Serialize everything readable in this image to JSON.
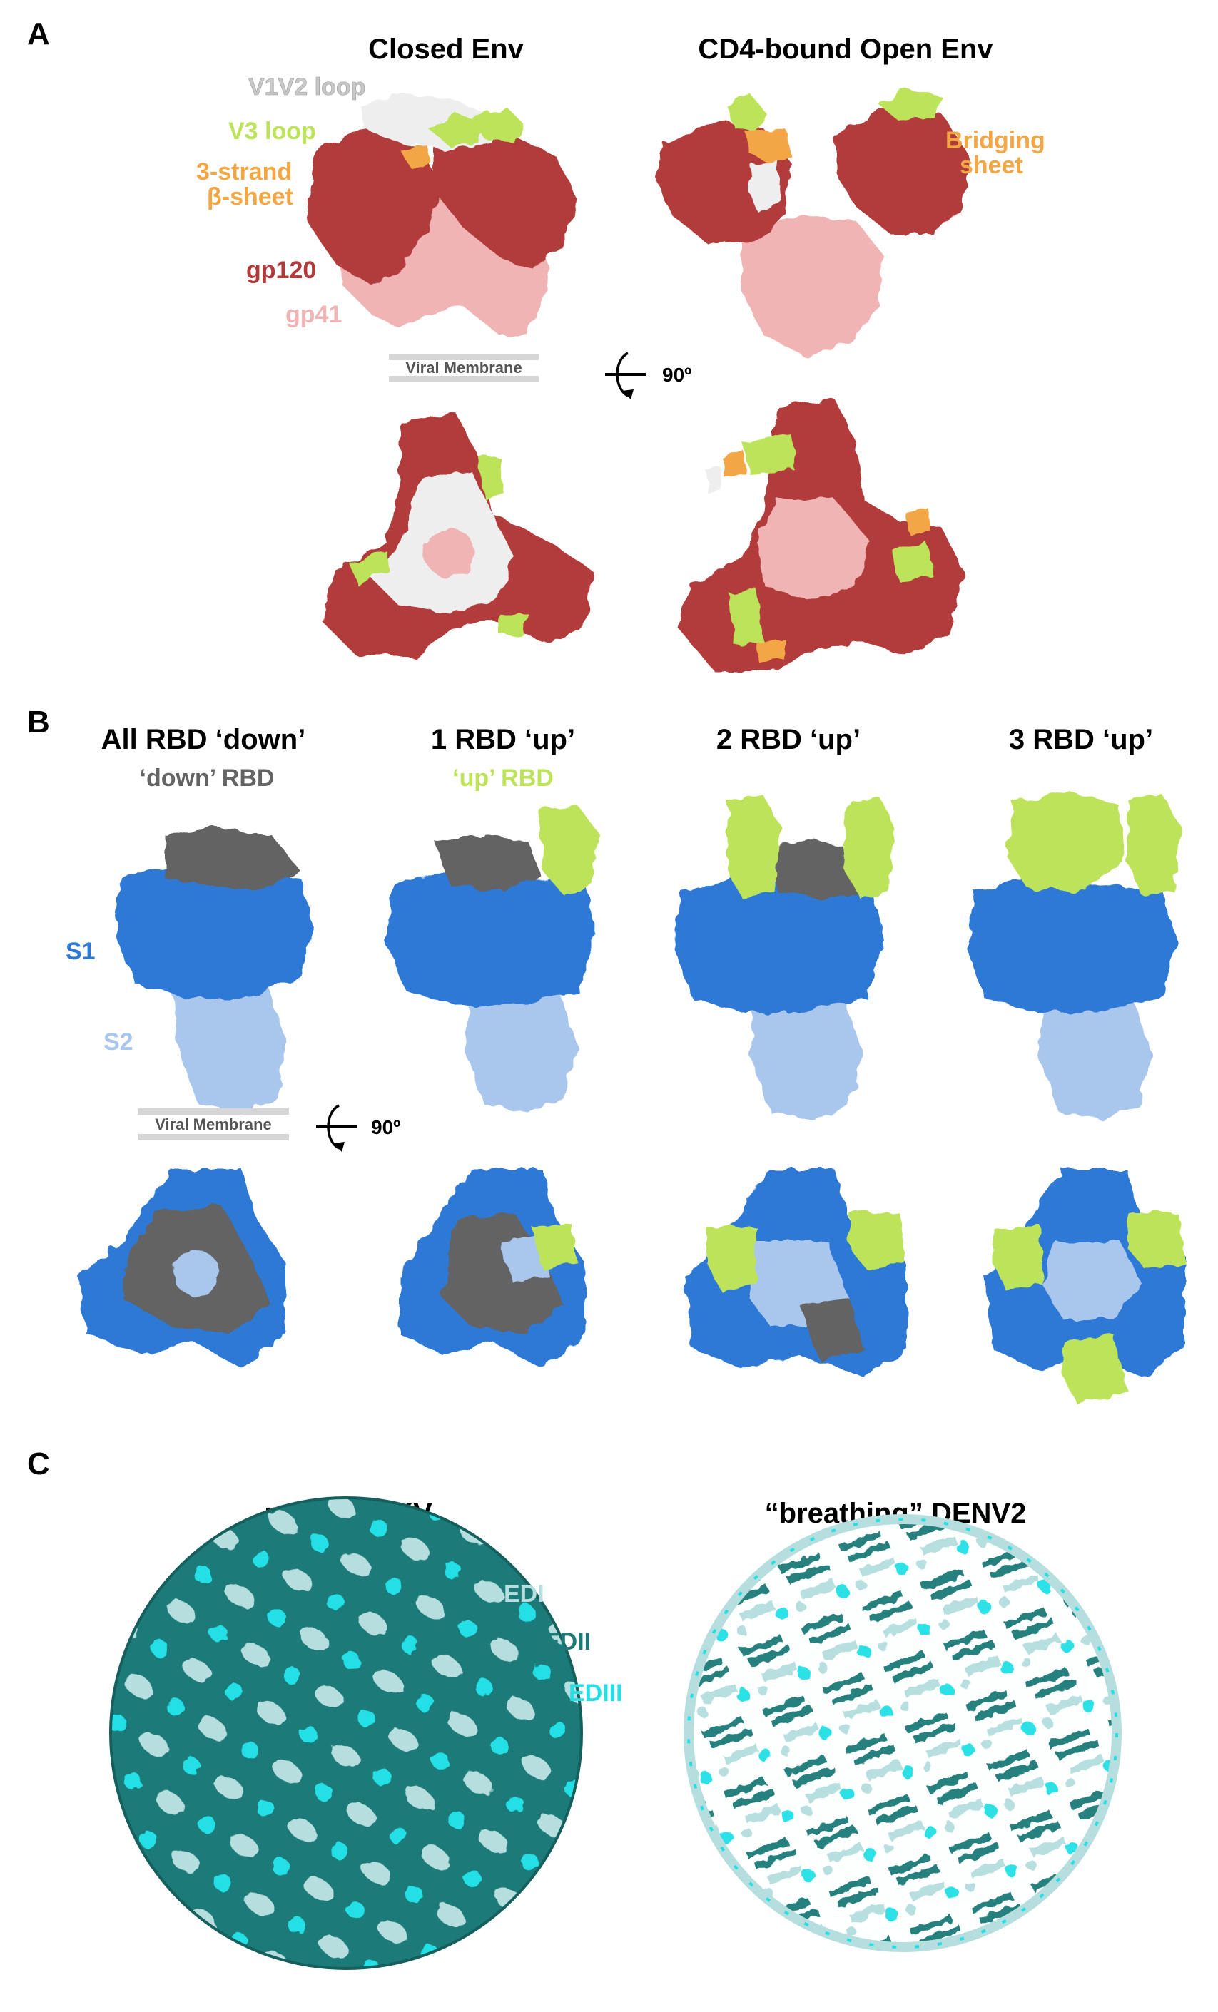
{
  "colors": {
    "gp120": "#b23a3a",
    "gp41": "#f0b4b4",
    "v1v2": "#eeeeee",
    "v3": "#bde35a",
    "beta": "#f2a644",
    "s1": "#2e78d6",
    "s2": "#a9c6ec",
    "rbd_down": "#646464",
    "rbd_up": "#bde35a",
    "edi": "#b6dede",
    "edii": "#1d7a78",
    "ediii": "#24e0e6",
    "membrane": "#d6d6d6"
  },
  "panel_a": {
    "letter": "A",
    "titles": [
      "Closed Env",
      "CD4-bound Open Env"
    ],
    "labels": {
      "v1v2": "V1V2 loop",
      "v3": "V3 loop",
      "beta_line1": "3-strand",
      "beta_line2": "β-sheet",
      "gp120": "gp120",
      "gp41": "gp41",
      "bridging_line1": "Bridging",
      "bridging_line2": "sheet"
    },
    "membrane": "Viral Membrane",
    "rotation": "90º"
  },
  "panel_b": {
    "letter": "B",
    "titles": [
      "All RBD ‘down’",
      "1 RBD ‘up’",
      "2 RBD ‘up’",
      "3 RBD ‘up’"
    ],
    "labels": {
      "down_rbd": "‘down’ RBD",
      "up_rbd": "‘up’ RBD",
      "s1": "S1",
      "s2": "S2"
    },
    "membrane": "Viral Membrane",
    "rotation": "90º"
  },
  "panel_c": {
    "letter": "C",
    "titles": [
      "mature ZIKV",
      "“breathing” DENV2"
    ],
    "labels": {
      "edi": "EDI",
      "edii": "EDII",
      "ediii": "EDIII"
    }
  }
}
